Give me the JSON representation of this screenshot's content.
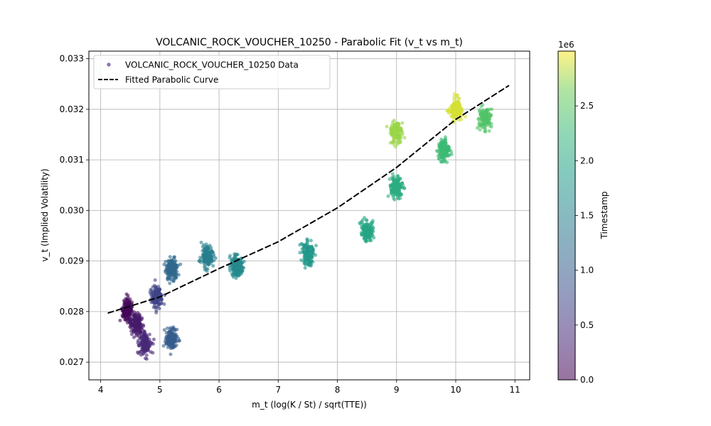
{
  "chart_data": {
    "type": "scatter",
    "title": "VOLCANIC_ROCK_VOUCHER_10250 - Parabolic Fit (v_t vs m_t)",
    "xlabel": "m_t (log(K / St) / sqrt(TTE))",
    "ylabel": "v_t (Implied Volatility)",
    "xlim": [
      3.8,
      11.25
    ],
    "ylim": [
      0.02665,
      0.03315
    ],
    "x_ticks": [
      4,
      5,
      6,
      7,
      8,
      9,
      10,
      11
    ],
    "y_ticks": [
      0.027,
      0.028,
      0.029,
      0.03,
      0.031,
      0.032,
      0.033
    ],
    "x_tick_labels": [
      "4",
      "5",
      "6",
      "7",
      "8",
      "9",
      "10",
      "11"
    ],
    "y_tick_labels": [
      "0.027",
      "0.028",
      "0.029",
      "0.030",
      "0.031",
      "0.032",
      "0.033"
    ],
    "grid": true,
    "legend_position": "top-left",
    "colormap": "viridis",
    "series": [
      {
        "name": "VOLCANIC_ROCK_VOUCHER_10250 Data",
        "kind": "scatter",
        "clusters": [
          {
            "x": 4.45,
            "y": 0.02805,
            "timestamp": 50000
          },
          {
            "x": 4.6,
            "y": 0.02775,
            "timestamp": 250000
          },
          {
            "x": 4.75,
            "y": 0.02735,
            "timestamp": 400000
          },
          {
            "x": 4.95,
            "y": 0.0283,
            "timestamp": 700000
          },
          {
            "x": 5.2,
            "y": 0.02745,
            "timestamp": 1000000
          },
          {
            "x": 5.2,
            "y": 0.02885,
            "timestamp": 1150000
          },
          {
            "x": 5.8,
            "y": 0.0291,
            "timestamp": 1450000
          },
          {
            "x": 6.3,
            "y": 0.0289,
            "timestamp": 1600000
          },
          {
            "x": 7.5,
            "y": 0.02915,
            "timestamp": 1800000
          },
          {
            "x": 8.5,
            "y": 0.0296,
            "timestamp": 2000000
          },
          {
            "x": 9.0,
            "y": 0.03045,
            "timestamp": 2100000
          },
          {
            "x": 9.8,
            "y": 0.0312,
            "timestamp": 2300000
          },
          {
            "x": 10.5,
            "y": 0.0318,
            "timestamp": 2450000
          },
          {
            "x": 9.0,
            "y": 0.03155,
            "timestamp": 2750000
          },
          {
            "x": 10.0,
            "y": 0.032,
            "timestamp": 2900000
          }
        ]
      },
      {
        "name": "Fitted Parabolic Curve",
        "kind": "line",
        "x": [
          4.12,
          5.0,
          6.0,
          7.0,
          8.0,
          9.0,
          10.0,
          10.9
        ],
        "y": [
          0.02797,
          0.02829,
          0.02885,
          0.02938,
          0.03005,
          0.03085,
          0.0318,
          0.03247
        ]
      }
    ],
    "colorbar": {
      "label": "Timestamp",
      "offset_label": "1e6",
      "range": [
        0,
        3000000
      ],
      "ticks": [
        0,
        500000,
        1000000,
        1500000,
        2000000,
        2500000
      ],
      "tick_labels": [
        "0.0",
        "0.5",
        "1.0",
        "1.5",
        "2.0",
        "2.5"
      ]
    }
  }
}
